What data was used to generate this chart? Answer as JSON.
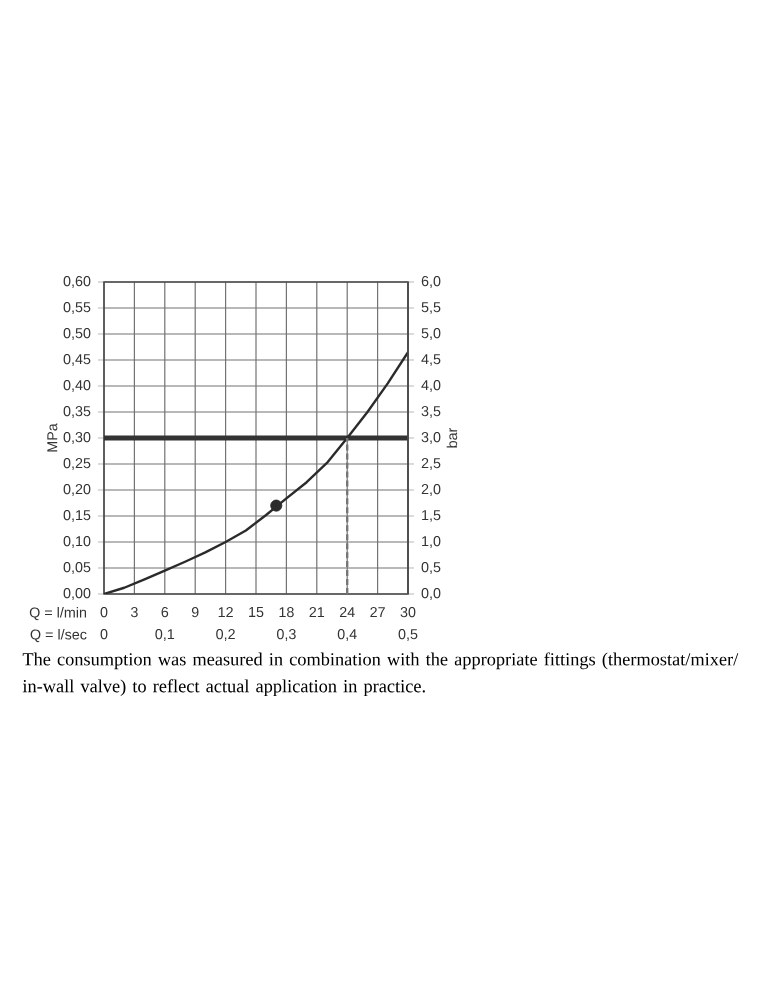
{
  "chart_data": {
    "type": "line",
    "xlabel": "Q = l/min",
    "x2label": "Q = l/sec",
    "ylabel": "MPa",
    "y2label": "bar",
    "xlim": [
      0,
      30
    ],
    "xticks": [
      0,
      3,
      6,
      9,
      12,
      15,
      18,
      21,
      24,
      27,
      30
    ],
    "x2lim": [
      0,
      0.5
    ],
    "x2ticks": [
      0,
      {
        "value": 0.1,
        "label": "0,1"
      },
      {
        "value": 0.2,
        "label": "0,2"
      },
      {
        "value": 0.3,
        "label": "0,3"
      },
      {
        "value": 0.4,
        "label": "0,4"
      },
      {
        "value": 0.5,
        "label": "0,5"
      }
    ],
    "ylim": [
      0,
      0.6
    ],
    "yticks": [
      {
        "value": 0,
        "label": "0,00"
      },
      {
        "value": 0.05,
        "label": "0,05"
      },
      {
        "value": 0.1,
        "label": "0,10"
      },
      {
        "value": 0.15,
        "label": "0,15"
      },
      {
        "value": 0.2,
        "label": "0,20"
      },
      {
        "value": 0.25,
        "label": "0,25"
      },
      {
        "value": 0.3,
        "label": "0,30"
      },
      {
        "value": 0.35,
        "label": "0,35"
      },
      {
        "value": 0.4,
        "label": "0,40"
      },
      {
        "value": 0.45,
        "label": "0,45"
      },
      {
        "value": 0.5,
        "label": "0,50"
      },
      {
        "value": 0.55,
        "label": "0,55"
      },
      {
        "value": 0.6,
        "label": "0,60"
      }
    ],
    "y2lim": [
      0,
      6
    ],
    "y2ticks": [
      {
        "value": 0,
        "label": "0,0"
      },
      {
        "value": 0.5,
        "label": "0,5"
      },
      {
        "value": 1,
        "label": "1,0"
      },
      {
        "value": 1.5,
        "label": "1,5"
      },
      {
        "value": 2,
        "label": "2,0"
      },
      {
        "value": 2.5,
        "label": "2,5"
      },
      {
        "value": 3,
        "label": "3,0"
      },
      {
        "value": 3.5,
        "label": "3,5"
      },
      {
        "value": 4,
        "label": "4,0"
      },
      {
        "value": 4.5,
        "label": "4,5"
      },
      {
        "value": 5,
        "label": "5,0"
      },
      {
        "value": 5.5,
        "label": "5,5"
      },
      {
        "value": 6,
        "label": "6,0"
      }
    ],
    "grid": true,
    "series": [
      {
        "color": "#2b2b2b",
        "line_style": "solid",
        "x": [
          0,
          2,
          4,
          6,
          8,
          10,
          12,
          14,
          16,
          18,
          20,
          22,
          24,
          26,
          28,
          30
        ],
        "values": [
          0,
          0.012,
          0.028,
          0.045,
          0.062,
          0.08,
          0.1,
          0.122,
          0.152,
          0.184,
          0.215,
          0.252,
          0.3,
          0.35,
          0.405,
          0.465
        ]
      },
      {
        "type": "line",
        "color": "#777777",
        "line_style": "dashed",
        "x": [
          24,
          24
        ],
        "values": [
          0,
          0.3
        ]
      },
      {
        "type": "scatter",
        "color": "#2b2b2b",
        "marker": "circle",
        "x": [
          17
        ],
        "values": [
          0.17
        ]
      }
    ],
    "ref_lines": [
      {
        "axis": "y",
        "value": 0.3,
        "color": "#333333"
      }
    ],
    "annotations": [
      "The consumption was measured in combination with the appropriate fittings (thermostat/mixer/ in-wall valve) to reflect actual application in practice."
    ]
  }
}
